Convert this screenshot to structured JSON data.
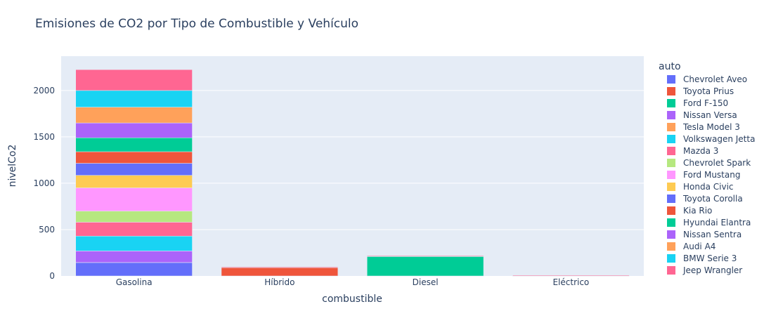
{
  "chart_data": {
    "type": "bar",
    "barmode": "stack",
    "title": "Emisiones de CO2 por Tipo de Combustible y Vehículo",
    "xlabel": "combustible",
    "ylabel": "nivelCo2",
    "categories": [
      "Gasolina",
      "Híbrido",
      "Diesel",
      "Eléctrico"
    ],
    "ylim": [
      0,
      2370
    ],
    "yticks": [
      0,
      500,
      1000,
      1500,
      2000
    ],
    "grid": true,
    "legend_title": "auto",
    "legend_position": "right",
    "series": [
      {
        "name": "Chevrolet Aveo",
        "color": "#636efa",
        "values": [
          145,
          0,
          0,
          0
        ]
      },
      {
        "name": "Toyota Prius",
        "color": "#EF553B",
        "values": [
          0,
          90,
          0,
          0
        ]
      },
      {
        "name": "Ford F-150",
        "color": "#00cc96",
        "values": [
          0,
          0,
          210,
          0
        ]
      },
      {
        "name": "Nissan Versa",
        "color": "#ab63fa",
        "values": [
          125,
          0,
          0,
          0
        ]
      },
      {
        "name": "Tesla Model 3",
        "color": "#FFA15A",
        "values": [
          0,
          0,
          0,
          0
        ]
      },
      {
        "name": "Volkswagen Jetta",
        "color": "#19d3f3",
        "values": [
          160,
          0,
          0,
          0
        ]
      },
      {
        "name": "Mazda 3",
        "color": "#FF6692",
        "values": [
          150,
          0,
          0,
          0
        ]
      },
      {
        "name": "Chevrolet Spark",
        "color": "#B6E880",
        "values": [
          120,
          0,
          0,
          0
        ]
      },
      {
        "name": "Ford Mustang",
        "color": "#FF97FF",
        "values": [
          250,
          0,
          0,
          0
        ]
      },
      {
        "name": "Honda Civic",
        "color": "#FECB52",
        "values": [
          135,
          0,
          0,
          0
        ]
      },
      {
        "name": "Toyota Corolla",
        "color": "#636efa",
        "values": [
          130,
          0,
          0,
          0
        ]
      },
      {
        "name": "Kia Rio",
        "color": "#EF553B",
        "values": [
          125,
          0,
          0,
          0
        ]
      },
      {
        "name": "Hyundai Elantra",
        "color": "#00cc96",
        "values": [
          150,
          0,
          0,
          0
        ]
      },
      {
        "name": "Nissan Sentra",
        "color": "#ab63fa",
        "values": [
          160,
          0,
          0,
          0
        ]
      },
      {
        "name": "Audi A4",
        "color": "#FFA15A",
        "values": [
          170,
          0,
          0,
          0
        ]
      },
      {
        "name": "BMW Serie 3",
        "color": "#19d3f3",
        "values": [
          180,
          0,
          0,
          0
        ]
      },
      {
        "name": "Jeep Wrangler",
        "color": "#FF6692",
        "values": [
          225,
          0,
          0,
          0
        ]
      }
    ]
  }
}
